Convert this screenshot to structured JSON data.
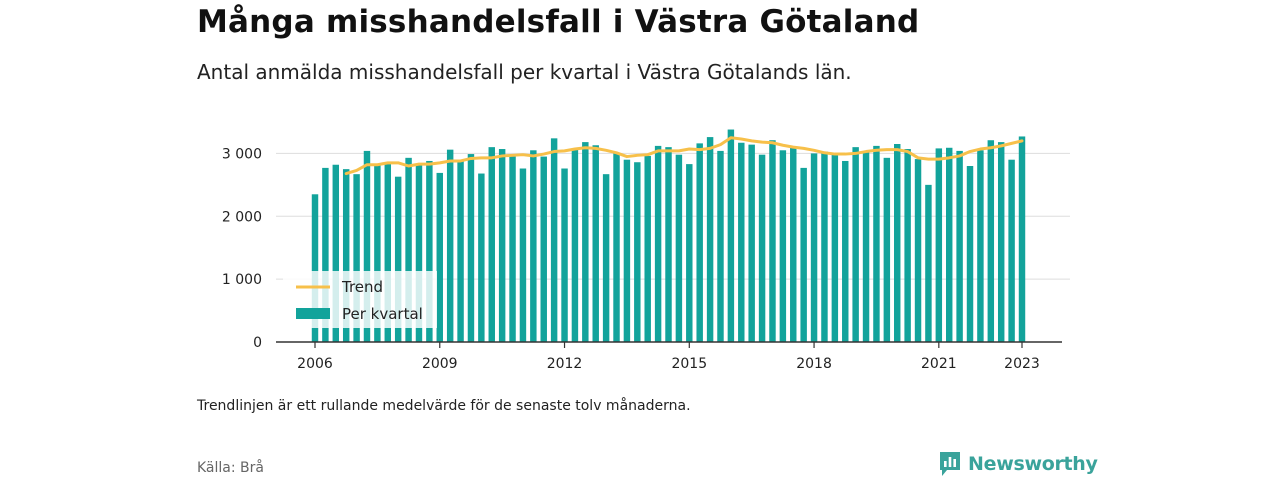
{
  "chart_data": {
    "type": "bar",
    "title": "Många misshandelsfall i Västra Götaland",
    "subtitle": "Antal anmälda misshandelsfall per kvartal i Västra Götalands län.",
    "xlabel": "",
    "ylabel": "",
    "ylim": [
      0,
      3500
    ],
    "yticks": [
      {
        "value": 0,
        "label": "0"
      },
      {
        "value": 1000,
        "label": "1 000"
      },
      {
        "value": 2000,
        "label": "2 000"
      },
      {
        "value": 3000,
        "label": "3 000"
      }
    ],
    "xticks": [
      {
        "label": "2006",
        "index": 0
      },
      {
        "label": "2009",
        "index": 12
      },
      {
        "label": "2012",
        "index": 24
      },
      {
        "label": "2015",
        "index": 36
      },
      {
        "label": "2018",
        "index": 48
      },
      {
        "label": "2021",
        "index": 60
      },
      {
        "label": "2023",
        "index": 68
      }
    ],
    "grid": true,
    "legend_position": "bottom-left",
    "colors": {
      "bars": "#12a39b",
      "trend": "#f7c04a",
      "axis": "#333333",
      "grid": "#dddddd"
    },
    "series": [
      {
        "name": "Per kvartal",
        "type": "bar",
        "values": [
          2350,
          2770,
          2820,
          2750,
          2670,
          3040,
          2810,
          2830,
          2630,
          2930,
          2810,
          2880,
          2690,
          3060,
          2880,
          2990,
          2680,
          3100,
          3070,
          2950,
          2760,
          3050,
          2950,
          3240,
          2760,
          3070,
          3180,
          3130,
          2670,
          3000,
          2900,
          2860,
          2960,
          3120,
          3100,
          2980,
          2830,
          3160,
          3260,
          3040,
          3380,
          3170,
          3140,
          2980,
          3210,
          3050,
          3100,
          2770,
          3000,
          3030,
          2980,
          2880,
          3100,
          3020,
          3120,
          2930,
          3150,
          3070,
          2910,
          2500,
          3080,
          3090,
          3040,
          2800,
          3050,
          3210,
          3180,
          2900,
          3270
        ]
      },
      {
        "name": "Trend",
        "type": "line",
        "values": [
          null,
          null,
          null,
          2680,
          2730,
          2820,
          2820,
          2850,
          2850,
          2800,
          2830,
          2830,
          2850,
          2880,
          2880,
          2920,
          2930,
          2930,
          2960,
          2970,
          2980,
          2960,
          2990,
          3030,
          3040,
          3070,
          3090,
          3080,
          3050,
          3010,
          2950,
          2970,
          2980,
          3040,
          3040,
          3040,
          3070,
          3060,
          3080,
          3140,
          3250,
          3230,
          3200,
          3180,
          3170,
          3130,
          3100,
          3080,
          3050,
          3010,
          2990,
          2990,
          3000,
          3030,
          3050,
          3060,
          3060,
          3030,
          2930,
          2910,
          2910,
          2930,
          2960,
          3030,
          3070,
          3090,
          3120,
          3160,
          3200
        ]
      }
    ]
  },
  "note": "Trendlinjen är ett rullande medelvärde för de senaste tolv månaderna.",
  "source": "Källa: Brå",
  "brand": {
    "name": "Newsworthy",
    "icon": "newsworthy-logo-icon"
  }
}
